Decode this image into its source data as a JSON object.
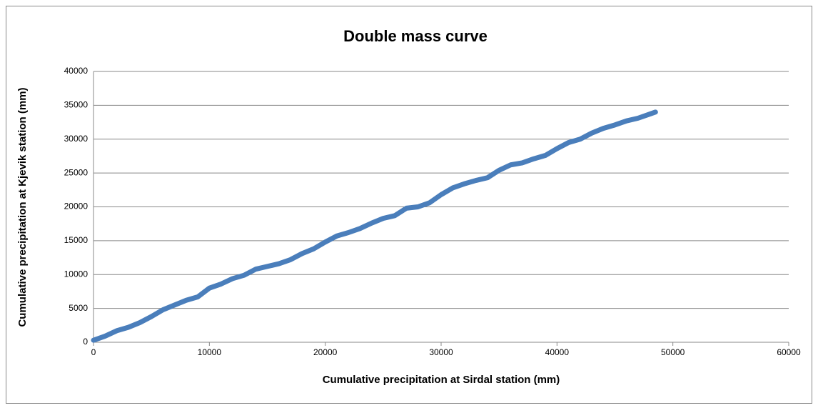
{
  "chart_data": {
    "type": "line",
    "title": "Double mass curve",
    "x_label": "Cumulative precipitation at Sirdal station (mm)",
    "y_label": "Cumulative precipitation at Kjevik station (mm)",
    "x": [
      0,
      1000,
      2000,
      3000,
      4000,
      5000,
      6000,
      7000,
      8000,
      9000,
      10000,
      11000,
      12000,
      13000,
      14000,
      15000,
      16000,
      17000,
      18000,
      19000,
      20000,
      21000,
      22000,
      23000,
      24000,
      25000,
      26000,
      27000,
      28000,
      29000,
      30000,
      31000,
      32000,
      33000,
      34000,
      35000,
      36000,
      37000,
      38000,
      39000,
      40000,
      41000,
      42000,
      43000,
      44000,
      45000,
      46000,
      47000,
      48000,
      48500
    ],
    "series": [
      {
        "name": "Kjevik",
        "color": "#4a7ebb",
        "values": [
          300,
          900,
          1700,
          2200,
          2900,
          3800,
          4800,
          5500,
          6200,
          6700,
          8000,
          8600,
          9400,
          9900,
          10800,
          11200,
          11600,
          12200,
          13100,
          13800,
          14800,
          15700,
          16200,
          16800,
          17600,
          18300,
          18700,
          19800,
          20000,
          20600,
          21800,
          22800,
          23400,
          23900,
          24300,
          25400,
          26200,
          26500,
          27100,
          27600,
          28600,
          29500,
          30000,
          30900,
          31600,
          32100,
          32700,
          33100,
          33700,
          34000
        ]
      }
    ],
    "xlim": [
      0,
      60000
    ],
    "xticks": [
      0,
      10000,
      20000,
      30000,
      40000,
      50000,
      60000
    ],
    "ylim": [
      0,
      40000
    ],
    "yticks": [
      0,
      5000,
      10000,
      15000,
      20000,
      25000,
      30000,
      35000,
      40000
    ],
    "grid": true
  }
}
